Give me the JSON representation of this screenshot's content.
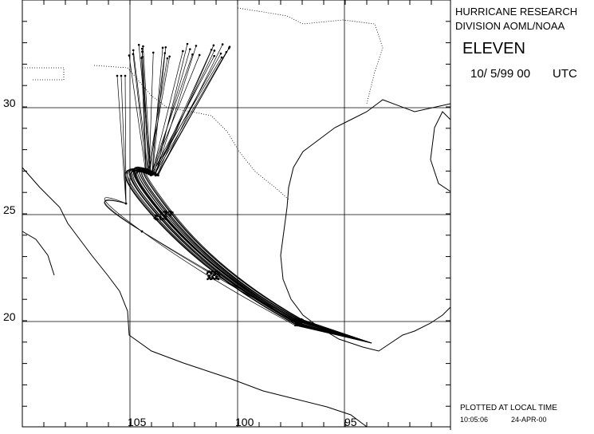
{
  "header": {
    "lines": [
      "HURRICANE RESEARCH",
      "DIVISION AOML/NOAA"
    ],
    "storm": "ELEVEN",
    "date": "10/ 5/99 00",
    "zone": "UTC"
  },
  "map": {
    "lat_labels": [
      "30",
      "25",
      "20"
    ],
    "lon_labels": [
      "105",
      "100",
      "95"
    ]
  },
  "footer": {
    "note": "PLOTTED AT LOCAL TIME",
    "time": "10:05:06",
    "date": "24-APR-00"
  }
}
